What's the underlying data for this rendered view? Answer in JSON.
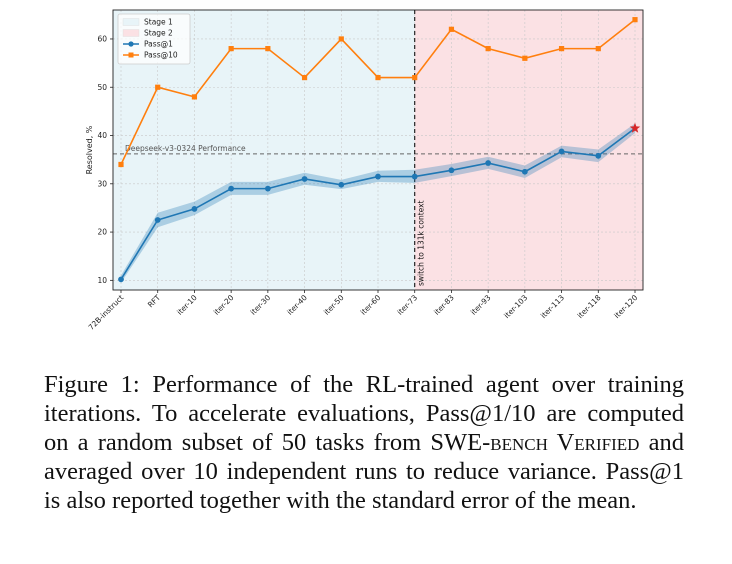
{
  "chart_data": {
    "type": "line",
    "categories": [
      "72B-instruct",
      "RFT",
      "iter-10",
      "iter-20",
      "iter-30",
      "iter-40",
      "iter-50",
      "iter-60",
      "iter-73",
      "iter-83",
      "iter-93",
      "iter-103",
      "iter-113",
      "iter-118",
      "iter-120"
    ],
    "ylabel": "Resolved, %",
    "xlabel": "",
    "ylim": [
      8,
      66
    ],
    "yticks": [
      10,
      20,
      30,
      40,
      50,
      60
    ],
    "grid": true,
    "legend_position": "top-left",
    "series": [
      {
        "name": "Pass@1",
        "color": "#1f77b4",
        "marker": "circle",
        "values": [
          10.2,
          22.5,
          24.8,
          29.0,
          29.0,
          31.0,
          29.8,
          31.5,
          31.5,
          32.8,
          34.3,
          32.5,
          36.7,
          35.8,
          41.5
        ],
        "sem_low": [
          9.5,
          21.0,
          23.5,
          27.7,
          27.7,
          29.8,
          28.9,
          30.4,
          30.2,
          31.6,
          33.1,
          31.2,
          35.5,
          34.5,
          40.5
        ],
        "sem_high": [
          11.0,
          24.0,
          26.3,
          30.4,
          30.4,
          32.3,
          30.8,
          32.7,
          32.9,
          34.1,
          35.6,
          33.8,
          37.9,
          37.1,
          42.5
        ]
      },
      {
        "name": "Pass@10",
        "color": "#ff7f0e",
        "marker": "square",
        "values": [
          34,
          50,
          48,
          58,
          58,
          52,
          60,
          52,
          52,
          62,
          58,
          56,
          58,
          58,
          64
        ]
      }
    ],
    "stages": [
      {
        "name": "Stage 1",
        "color": "#e8f4f8",
        "from_index": 0,
        "to_index": 8
      },
      {
        "name": "Stage 2",
        "color": "#fbe1e4",
        "from_index": 8,
        "to_index": 14
      }
    ],
    "reference_line": {
      "label": "Deepseek-v3-0324 Performance",
      "value": 36.2
    },
    "vertical_marker": {
      "label": "switch to 131k context",
      "index": 8
    },
    "highlight": {
      "index": 14,
      "marker": "star",
      "color": "#d62728"
    }
  },
  "caption": {
    "lead": "Figure 1: Performance of the RL-trained agent over training iterations. To accelerate evaluations, Pass@1/10 are computed on a random subset of 50 tasks from ",
    "benchmark": "SWE-bench Verified",
    "tail": " and averaged over 10 independent runs to reduce variance. Pass@1 is also reported together with the standard error of the mean."
  }
}
